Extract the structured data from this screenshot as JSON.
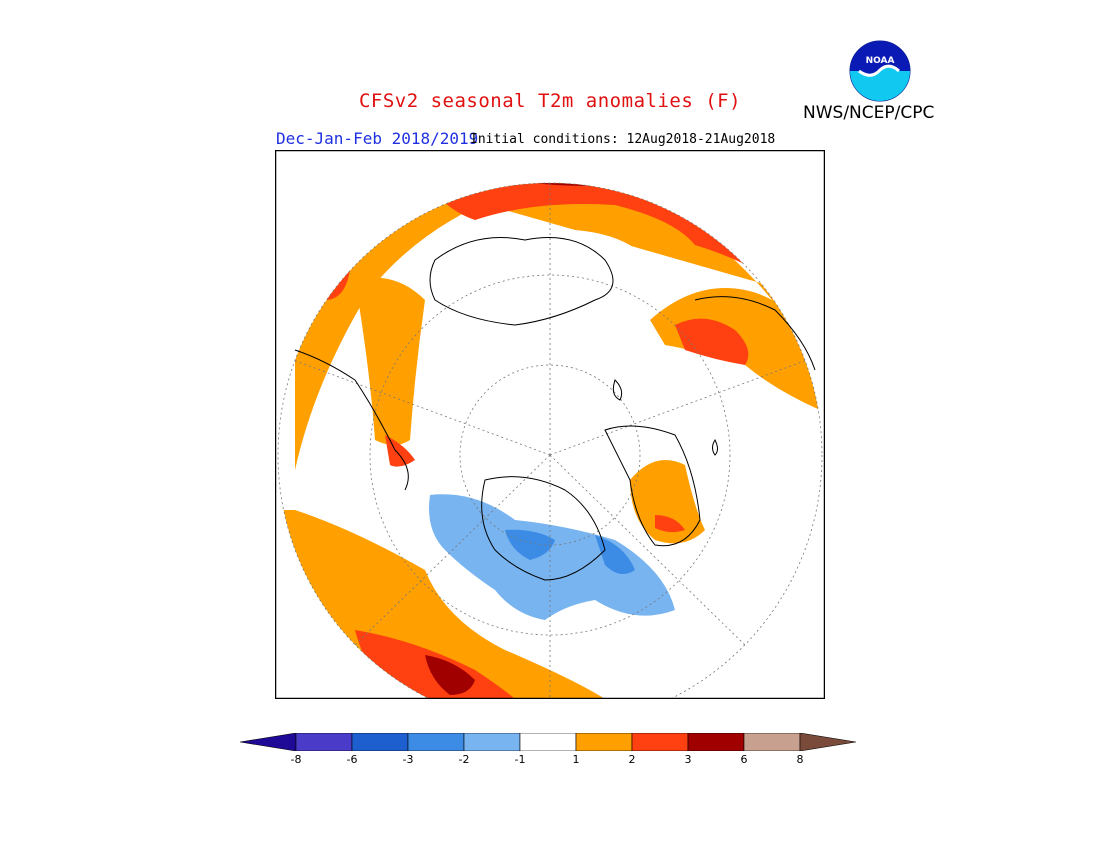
{
  "header": {
    "title": "CFSv2 seasonal T2m anomalies (F)",
    "season": "Dec-Jan-Feb 2018/2019",
    "initial_conditions": "Initial conditions: 12Aug2018-21Aug2018",
    "agency": "NWS/NCEP/CPC",
    "logo_text": "NOAA"
  },
  "colorbar": {
    "ticks": [
      "-8",
      "-6",
      "-3",
      "-2",
      "-1",
      "1",
      "2",
      "3",
      "6",
      "8"
    ],
    "colors": [
      "#1e0a96",
      "#4a3cc8",
      "#1e5fd0",
      "#3c8ce6",
      "#78b4f0",
      "#ffffff",
      "#ffa000",
      "#ff4010",
      "#a00000",
      "#c8a090",
      "#7a4a3a"
    ]
  },
  "map": {
    "projection": "north-polar-stereographic",
    "colors": {
      "warm1": "#ffa000",
      "warm2": "#ff4010",
      "warm3": "#a00000",
      "cool1": "#78b4f0",
      "cool2": "#3c8ce6"
    }
  }
}
